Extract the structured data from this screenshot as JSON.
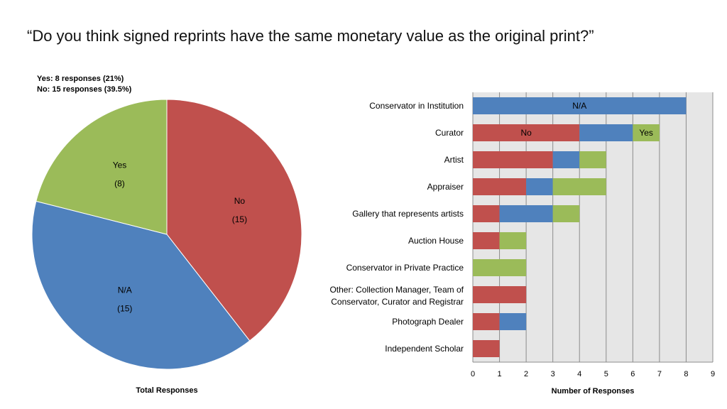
{
  "slide": {
    "title": "“Do you think signed reprints have the same monetary value as the original print?”",
    "summary": [
      "Yes:  8 responses (21%)",
      "No: 15 responses (39.5%)"
    ]
  },
  "colors": {
    "No": "#c0504d",
    "N/A": "#4f81bd",
    "Yes": "#9bbb59",
    "plot_bg": "#e6e6e6"
  },
  "chart_data": [
    {
      "type": "pie",
      "xlabel": "Total Responses",
      "slices": [
        {
          "label": "No",
          "value": 15,
          "value_label": "(15)"
        },
        {
          "label": "N/A",
          "value": 15,
          "value_label": "(15)"
        },
        {
          "label": "Yes",
          "value": 8,
          "value_label": "(8)"
        }
      ]
    },
    {
      "type": "bar",
      "orientation": "horizontal",
      "stacked": true,
      "xlabel": "Number of Responses",
      "xlim": [
        0,
        9
      ],
      "xticks": [
        0,
        1,
        2,
        3,
        4,
        5,
        6,
        7,
        8,
        9
      ],
      "grid": true,
      "categories": [
        "Conservator in Institution",
        "Curator",
        "Artist",
        "Appraiser",
        "Gallery that represents artists",
        "Auction House",
        "Conservator in Private Practice",
        "Other: Collection Manager, Team of Conservator, Curator and Registrar",
        "Photograph Dealer",
        "Independent Scholar"
      ],
      "series": [
        {
          "key": "No",
          "values": [
            0,
            4,
            3,
            2,
            1,
            1,
            0,
            2,
            1,
            1
          ]
        },
        {
          "key": "N/A",
          "values": [
            8,
            2,
            1,
            1,
            2,
            0,
            0,
            0,
            1,
            0
          ]
        },
        {
          "key": "Yes",
          "values": [
            0,
            1,
            1,
            2,
            1,
            1,
            2,
            0,
            0,
            0
          ]
        }
      ],
      "bar_labels": [
        {
          "category": 0,
          "series": "N/A",
          "text": "N/A"
        },
        {
          "category": 1,
          "series": "No",
          "text": "No"
        },
        {
          "category": 1,
          "series": "Yes",
          "text": "Yes"
        }
      ]
    }
  ]
}
